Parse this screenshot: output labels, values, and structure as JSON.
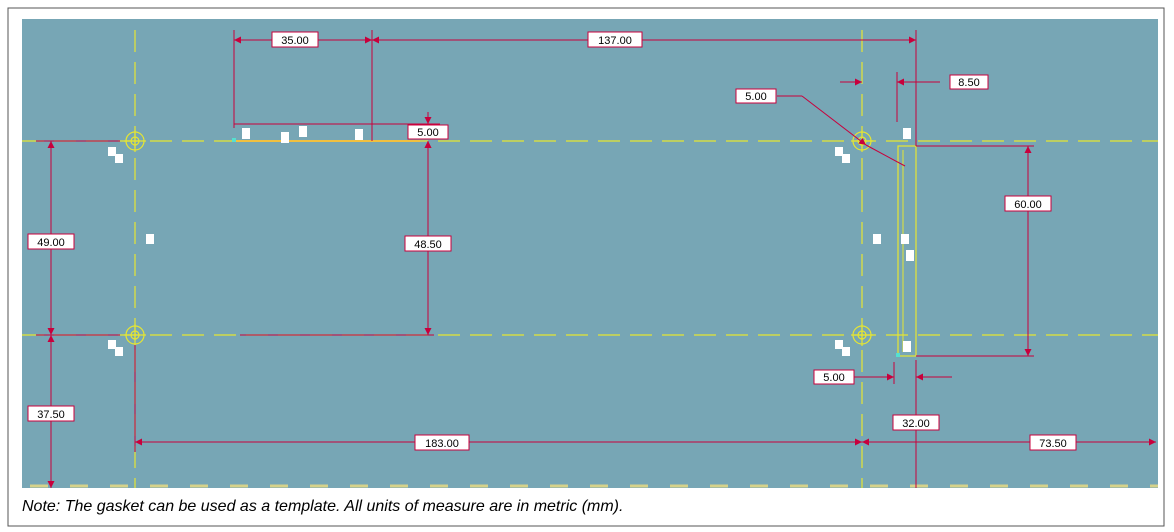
{
  "colors": {
    "canvas": "#77a6b5",
    "dimension": "#c8003c",
    "centerline": "#e6e632",
    "outline": "#ffffff",
    "label_bg": "#ffffff"
  },
  "dimensions": {
    "d_35": "35.00",
    "d_137": "137.00",
    "d_5_top": "5.00",
    "d_5_leader": "5.00",
    "d_8_5": "8.50",
    "d_60": "60.00",
    "d_49": "49.00",
    "d_48_5": "48.50",
    "d_37_5": "37.50",
    "d_5_bottom": "5.00",
    "d_32": "32.00",
    "d_183": "183.00",
    "d_73_5": "73.50"
  },
  "note": "Note: The gasket can be used as a template. All units of measure are in metric (mm)."
}
